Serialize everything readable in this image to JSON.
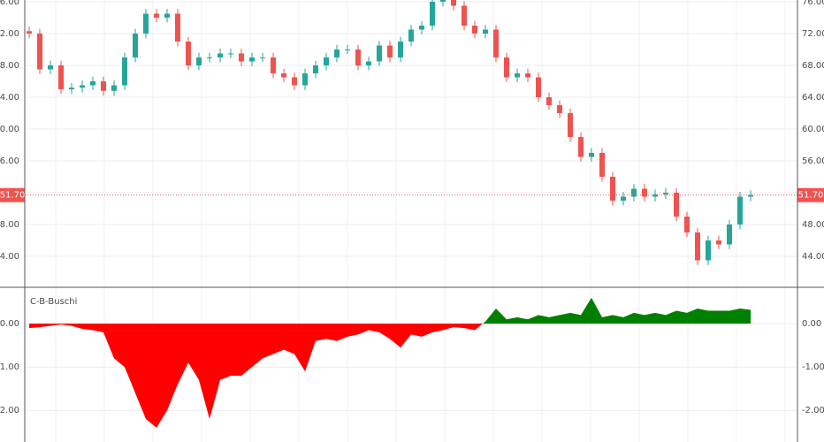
{
  "chart_data": [
    {
      "type": "candlestick",
      "open": [
        72.3,
        72,
        67.5,
        68,
        65,
        65.2,
        65.5,
        66,
        64.8,
        65.5,
        69,
        72,
        74.5,
        74,
        74.5,
        71,
        68,
        69,
        69,
        69.5,
        69.5,
        68.5,
        69,
        69,
        67,
        66.5,
        65.5,
        67,
        68,
        69,
        70,
        70,
        68,
        68.5,
        70.5,
        69,
        71,
        72.5,
        73,
        76,
        76.5,
        75.5,
        73,
        72,
        72.5,
        69,
        66.5,
        67,
        66.5,
        64,
        63,
        62,
        59,
        56.5,
        57,
        54,
        51,
        51.5,
        52.5,
        51.5,
        51.8,
        52,
        49,
        47,
        43.5,
        46,
        45.5,
        48,
        51.5
      ],
      "high": [
        72.9,
        72.6,
        68.6,
        68.6,
        65.8,
        66.1,
        66.6,
        66.6,
        66.1,
        69.6,
        72.6,
        75.1,
        75.1,
        75.1,
        75.1,
        71.6,
        69.6,
        69.6,
        70.1,
        70.1,
        70.1,
        69.6,
        69.6,
        69.6,
        67.6,
        67.1,
        67.6,
        68.6,
        69.6,
        70.6,
        70.6,
        70.6,
        69.1,
        71.1,
        71.1,
        71.6,
        73.1,
        73.6,
        76.6,
        77.1,
        77.1,
        76.1,
        73.6,
        73.1,
        73.1,
        69.6,
        67.6,
        67.6,
        67.1,
        64.6,
        63.6,
        62.6,
        59.6,
        57.6,
        57.6,
        54.6,
        52.1,
        53.1,
        53.1,
        52.4,
        52.6,
        52.6,
        49.6,
        47.6,
        46.6,
        46.6,
        48.6,
        52.1,
        52.3
      ],
      "low": [
        71.4,
        66.9,
        66.9,
        64.4,
        64.4,
        64.6,
        64.9,
        64.2,
        64.2,
        64.9,
        68.4,
        71.4,
        73.4,
        73.4,
        70.4,
        67.4,
        67.4,
        68.4,
        68.4,
        68.9,
        67.9,
        67.9,
        68.4,
        66.4,
        65.9,
        64.9,
        64.9,
        66.4,
        67.4,
        68.4,
        69.4,
        67.4,
        67.4,
        67.9,
        68.4,
        68.4,
        70.4,
        71.9,
        72.4,
        75.4,
        74.9,
        72.4,
        71.4,
        71.4,
        68.4,
        65.9,
        65.9,
        65.9,
        63.4,
        62.4,
        61.4,
        58.4,
        55.9,
        55.9,
        53.4,
        50.4,
        50.4,
        50.9,
        50.9,
        50.9,
        51.2,
        48.4,
        46.4,
        42.9,
        42.9,
        44.9,
        44.9,
        47.4,
        50.9
      ],
      "close": [
        72,
        67.5,
        68,
        65,
        65.2,
        65.5,
        66,
        64.8,
        65.5,
        69,
        72,
        74.5,
        74,
        74.5,
        71,
        68,
        69,
        69,
        69.5,
        69.5,
        68.5,
        69,
        69,
        67,
        66.5,
        65.5,
        67,
        68,
        69,
        70,
        70,
        68,
        68.5,
        70.5,
        69,
        71,
        72.5,
        73,
        76,
        76.5,
        75.5,
        73,
        72,
        72.5,
        69,
        66.5,
        67,
        66.5,
        64,
        63,
        62,
        59,
        56.5,
        57,
        54,
        51,
        51.5,
        52.5,
        51.5,
        51.8,
        52,
        49,
        47,
        43.5,
        46,
        45.5,
        48,
        51.5,
        51.7
      ],
      "up_color": "#26a69a",
      "down_color": "#ef5350",
      "ylim": [
        40.11,
        76.22
      ],
      "yticks": [
        {
          "value": 44,
          "label": "44.00"
        },
        {
          "value": 48,
          "label": "48.00"
        },
        {
          "value": 52,
          "label": "52.00"
        },
        {
          "value": 56,
          "label": "56.00"
        },
        {
          "value": 60,
          "label": "60.00"
        },
        {
          "value": 64,
          "label": "64.00"
        },
        {
          "value": 68,
          "label": "68.00"
        },
        {
          "value": 72,
          "label": "72.00"
        },
        {
          "value": 76,
          "label": "76.00"
        }
      ],
      "price_line": {
        "value": 51.7,
        "label": "51.70"
      },
      "grid": true
    },
    {
      "type": "area",
      "title": "C-B-Buschi",
      "values": [
        -0.1,
        -0.08,
        -0.05,
        -0.02,
        -0.05,
        -0.12,
        -0.15,
        -0.2,
        -0.8,
        -1.0,
        -1.6,
        -2.2,
        -2.4,
        -2.0,
        -1.4,
        -0.9,
        -1.3,
        -2.2,
        -1.3,
        -1.2,
        -1.2,
        -1.0,
        -0.8,
        -0.7,
        -0.6,
        -0.7,
        -1.1,
        -0.4,
        -0.35,
        -0.4,
        -0.3,
        -0.25,
        -0.15,
        -0.2,
        -0.35,
        -0.55,
        -0.25,
        -0.3,
        -0.2,
        -0.15,
        -0.08,
        -0.1,
        -0.15,
        0.05,
        0.35,
        0.1,
        0.15,
        0.1,
        0.2,
        0.15,
        0.2,
        0.25,
        0.2,
        0.6,
        0.15,
        0.2,
        0.15,
        0.25,
        0.2,
        0.25,
        0.2,
        0.3,
        0.25,
        0.35,
        0.3,
        0.3,
        0.3,
        0.35,
        0.32
      ],
      "positive_color": "#008000",
      "negative_color": "#ff0000",
      "ylim": [
        -2.73,
        0.84
      ],
      "yticks": [
        {
          "value": -2,
          "label": "-2.00"
        },
        {
          "value": -1,
          "label": "-1.00"
        },
        {
          "value": 0,
          "label": "0.00"
        }
      ],
      "grid": true
    }
  ]
}
